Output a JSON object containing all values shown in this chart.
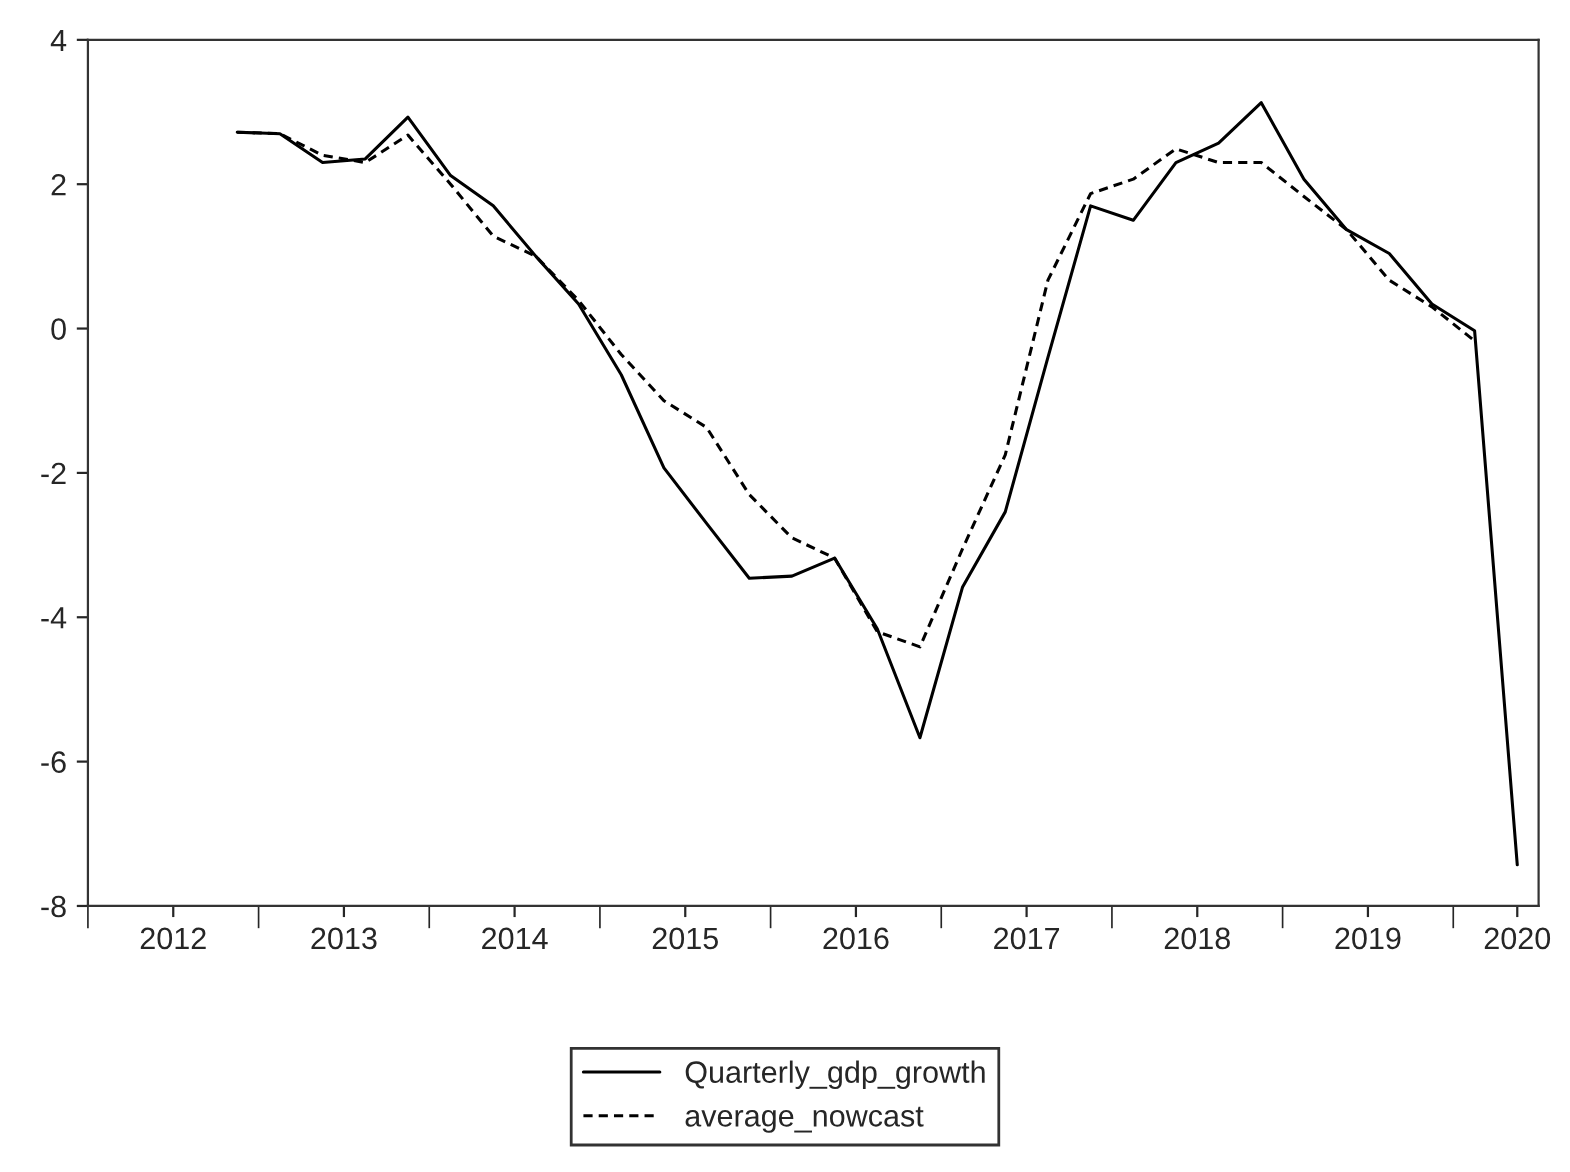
{
  "chart_data": {
    "type": "line",
    "x": [
      2012.875,
      2013.125,
      2013.375,
      2013.625,
      2013.875,
      2014.125,
      2014.375,
      2014.625,
      2014.875,
      2015.125,
      2015.375,
      2015.625,
      2015.875,
      2016.125,
      2016.375,
      2016.625,
      2016.875,
      2017.125,
      2017.375,
      2017.625,
      2017.875,
      2018.125,
      2018.375,
      2018.625,
      2018.875,
      2019.125,
      2019.375,
      2019.625,
      2019.875,
      2020.125,
      2020.375
    ],
    "series": [
      {
        "name": "Quarterly_gdp_growth",
        "color": "#000000",
        "line_style": "solid",
        "values": [
          2.72,
          2.7,
          2.3,
          2.35,
          2.93,
          2.12,
          1.7,
          1.0,
          0.34,
          -0.64,
          -1.93,
          -2.7,
          -3.46,
          -3.43,
          -3.18,
          -4.16,
          -5.67,
          -3.58,
          -2.54,
          -0.4,
          1.7,
          1.5,
          2.3,
          2.57,
          3.13,
          2.07,
          1.37,
          1.04,
          0.34,
          -0.03,
          -7.43
        ]
      },
      {
        "name": "average_nowcast",
        "color": "#000000",
        "line_style": "dashed",
        "values": [
          2.72,
          2.7,
          2.4,
          2.3,
          2.68,
          2.0,
          1.28,
          1.0,
          0.39,
          -0.36,
          -1.0,
          -1.37,
          -2.3,
          -2.9,
          -3.18,
          -4.2,
          -4.41,
          -3.05,
          -1.75,
          0.67,
          1.87,
          2.07,
          2.49,
          2.3,
          2.3,
          1.83,
          1.37,
          0.67,
          0.3,
          -0.17,
          null
        ]
      }
    ],
    "xlim": [
      2012,
      2020.5
    ],
    "xticks": [
      {
        "value": 2012,
        "label": null
      },
      {
        "value": 2012.5,
        "label": "2012"
      },
      {
        "value": 2013,
        "label": null
      },
      {
        "value": 2013.5,
        "label": "2013"
      },
      {
        "value": 2014,
        "label": null
      },
      {
        "value": 2014.5,
        "label": "2014"
      },
      {
        "value": 2015,
        "label": null
      },
      {
        "value": 2015.5,
        "label": "2015"
      },
      {
        "value": 2016,
        "label": null
      },
      {
        "value": 2016.5,
        "label": "2016"
      },
      {
        "value": 2017,
        "label": null
      },
      {
        "value": 2017.5,
        "label": "2017"
      },
      {
        "value": 2018,
        "label": null
      },
      {
        "value": 2018.5,
        "label": "2018"
      },
      {
        "value": 2019,
        "label": null
      },
      {
        "value": 2019.5,
        "label": "2019"
      },
      {
        "value": 2020,
        "label": null
      },
      {
        "value": 2020.375,
        "label": "2020"
      }
    ],
    "ylim": [
      -8,
      4
    ],
    "yticks": [
      -8,
      -6,
      -4,
      -2,
      0,
      2,
      4
    ],
    "grid": false,
    "legend": "bottom"
  }
}
